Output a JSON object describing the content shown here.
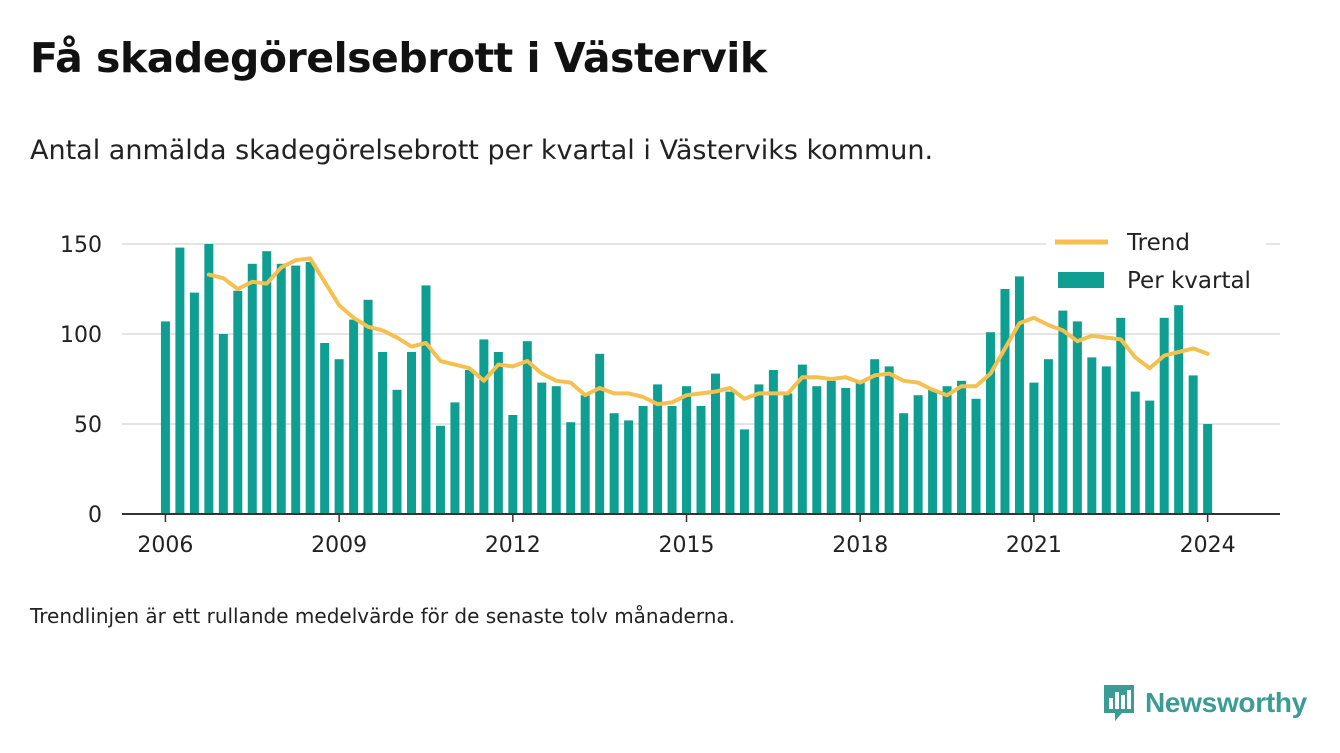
{
  "title": "Få skadegörelsebrott i Västervik",
  "subtitle": "Antal anmälda skadegörelsebrott per kvartal i Västerviks kommun.",
  "footnote": "Trendlinjen är ett rullande medelvärde för de senaste tolv månaderna.",
  "brand": {
    "name": "Newsworthy",
    "icon": "newsworthy-logo-icon"
  },
  "colors": {
    "bars": "#0e9e92",
    "trend": "#f5c04f",
    "grid": "#dcdcdc",
    "axis": "#333333",
    "brand": "#3a9c95"
  },
  "chart_data": {
    "type": "bar",
    "x": [
      "2006 Q1",
      "2006 Q2",
      "2006 Q3",
      "2006 Q4",
      "2007 Q1",
      "2007 Q2",
      "2007 Q3",
      "2007 Q4",
      "2008 Q1",
      "2008 Q2",
      "2008 Q3",
      "2008 Q4",
      "2009 Q1",
      "2009 Q2",
      "2009 Q3",
      "2009 Q4",
      "2010 Q1",
      "2010 Q2",
      "2010 Q3",
      "2010 Q4",
      "2011 Q1",
      "2011 Q2",
      "2011 Q3",
      "2011 Q4",
      "2012 Q1",
      "2012 Q2",
      "2012 Q3",
      "2012 Q4",
      "2013 Q1",
      "2013 Q2",
      "2013 Q3",
      "2013 Q4",
      "2014 Q1",
      "2014 Q2",
      "2014 Q3",
      "2014 Q4",
      "2015 Q1",
      "2015 Q2",
      "2015 Q3",
      "2015 Q4",
      "2016 Q1",
      "2016 Q2",
      "2016 Q3",
      "2016 Q4",
      "2017 Q1",
      "2017 Q2",
      "2017 Q3",
      "2017 Q4",
      "2018 Q1",
      "2018 Q2",
      "2018 Q3",
      "2018 Q4",
      "2019 Q1",
      "2019 Q2",
      "2019 Q3",
      "2019 Q4",
      "2020 Q1",
      "2020 Q2",
      "2020 Q3",
      "2020 Q4",
      "2021 Q1",
      "2021 Q2",
      "2021 Q3",
      "2021 Q4",
      "2022 Q1",
      "2022 Q2",
      "2022 Q3",
      "2022 Q4",
      "2023 Q1",
      "2023 Q2",
      "2023 Q3",
      "2023 Q4",
      "2024 Q1"
    ],
    "series": [
      {
        "name": "Per kvartal",
        "type": "bar",
        "values": [
          107,
          148,
          123,
          150,
          100,
          124,
          139,
          146,
          139,
          138,
          140,
          95,
          86,
          108,
          119,
          90,
          69,
          90,
          127,
          49,
          62,
          80,
          97,
          90,
          55,
          96,
          73,
          71,
          51,
          66,
          89,
          56,
          52,
          60,
          72,
          60,
          71,
          60,
          78,
          68,
          47,
          72,
          80,
          67,
          83,
          71,
          74,
          70,
          73,
          86,
          82,
          56,
          66,
          69,
          71,
          74,
          64,
          101,
          125,
          132,
          73,
          86,
          113,
          107,
          87,
          82,
          109,
          68,
          63,
          109,
          116,
          77,
          50
        ]
      },
      {
        "name": "Trend",
        "type": "line",
        "values": [
          null,
          null,
          null,
          133,
          131,
          125,
          129,
          128,
          137,
          141,
          142,
          129,
          116,
          109,
          104,
          102,
          98,
          93,
          95,
          85,
          83,
          81,
          74,
          83,
          82,
          85,
          78,
          74,
          73,
          66,
          70,
          67,
          67,
          65,
          61,
          62,
          66,
          67,
          68,
          70,
          64,
          67,
          67,
          67,
          76,
          76,
          75,
          76,
          73,
          77,
          78,
          74,
          73,
          69,
          66,
          71,
          71,
          78,
          92,
          106,
          109,
          105,
          102,
          96,
          99,
          98,
          97,
          87,
          81,
          88,
          90,
          92,
          89
        ]
      }
    ],
    "x_ticks": [
      "2006",
      "2009",
      "2012",
      "2015",
      "2018",
      "2021",
      "2024"
    ],
    "y_ticks": [
      0,
      50,
      100,
      150
    ],
    "ylim": [
      0,
      150
    ],
    "xlim": [
      "2005 Q2",
      "2025 Q2"
    ],
    "grid": true,
    "legend_position": "top-right",
    "legend": [
      "Trend",
      "Per kvartal"
    ]
  }
}
